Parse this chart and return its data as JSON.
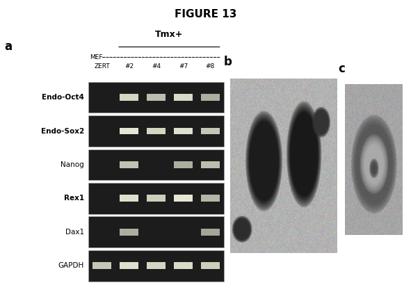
{
  "title": "FIGURE 13",
  "title_fontsize": 11,
  "title_fontweight": "bold",
  "panel_a_label": "a",
  "panel_b_label": "b",
  "panel_c_label": "c",
  "tmx_label": "Tmx+",
  "col_labels_row1": "MEF",
  "col_labels_row2": [
    "ZERT",
    "#2",
    "#4",
    "#7",
    "#8"
  ],
  "row_labels": [
    "Endo-Oct4",
    "Endo-Sox2",
    "Nanog",
    "Rex1",
    "Dax1",
    "GAPDH"
  ],
  "row_bold": [
    true,
    true,
    false,
    true,
    false,
    false
  ],
  "gel_num_cols": 5,
  "bands": {
    "Endo-Oct4": [
      false,
      true,
      true,
      true,
      true
    ],
    "Endo-Sox2": [
      false,
      true,
      true,
      true,
      true
    ],
    "Nanog": [
      false,
      true,
      false,
      true,
      true
    ],
    "Rex1": [
      false,
      true,
      true,
      true,
      true
    ],
    "Dax1": [
      false,
      true,
      false,
      false,
      true
    ],
    "GAPDH": [
      true,
      true,
      true,
      true,
      true
    ]
  },
  "band_brightness": {
    "Endo-Oct4": [
      0,
      0.88,
      0.78,
      0.9,
      0.72
    ],
    "Endo-Sox2": [
      0,
      0.95,
      0.88,
      0.92,
      0.82
    ],
    "Nanog": [
      0,
      0.8,
      0,
      0.72,
      0.78
    ],
    "Rex1": [
      0,
      0.92,
      0.85,
      0.95,
      0.75
    ],
    "Dax1": [
      0,
      0.72,
      0,
      0,
      0.68
    ],
    "GAPDH": [
      0.82,
      0.92,
      0.88,
      0.9,
      0.85
    ]
  }
}
